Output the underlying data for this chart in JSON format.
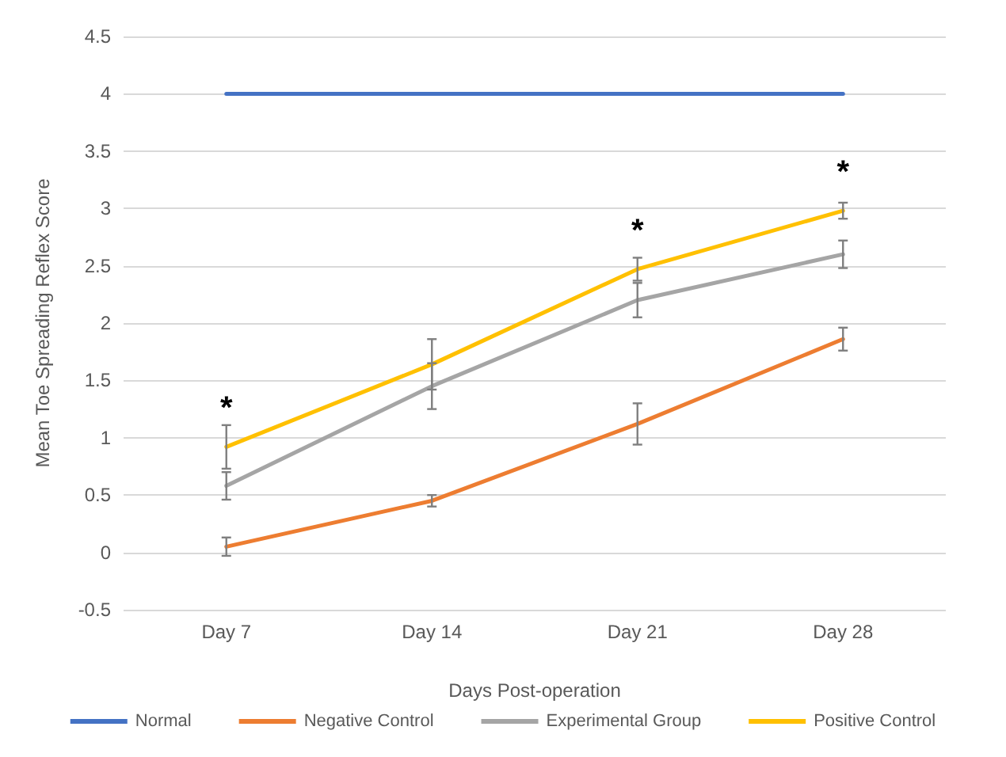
{
  "chart_data": {
    "type": "line",
    "xlabel": "Days Post-operation",
    "ylabel": "Mean Toe Spreading Reflex Score",
    "categories": [
      "Day 7",
      "Day 14",
      "Day 21",
      "Day 28"
    ],
    "series": [
      {
        "name": "Normal",
        "color": "#4472c4",
        "values": [
          4,
          4,
          4,
          4
        ]
      },
      {
        "name": "Negative Control",
        "color": "#ed7d31",
        "values": [
          0.05,
          0.45,
          1.12,
          1.86
        ],
        "errors": [
          0.08,
          0.05,
          0.18,
          0.1
        ]
      },
      {
        "name": "Experimental Group",
        "color": "#a5a5a5",
        "values": [
          0.58,
          1.45,
          2.2,
          2.6
        ],
        "errors": [
          0.12,
          0.2,
          0.15,
          0.12
        ]
      },
      {
        "name": "Positive Control",
        "color": "#ffc000",
        "values": [
          0.92,
          1.64,
          2.47,
          2.98
        ],
        "errors": [
          0.19,
          0.22,
          0.1,
          0.07
        ]
      }
    ],
    "ylim": [
      -0.5,
      4.5
    ],
    "yticks": [
      -0.5,
      0,
      0.5,
      1,
      1.5,
      2,
      2.5,
      3,
      3.5,
      4,
      4.5
    ],
    "grid": "y",
    "legend": "bottom",
    "marker": "none",
    "line_style": "solid",
    "annotations": [
      {
        "text": "*",
        "x": "Day 7",
        "y": 0.92
      },
      {
        "text": "*",
        "x": "Day 21",
        "y": 2.47
      },
      {
        "text": "*",
        "x": "Day 28",
        "y": 2.98
      }
    ]
  }
}
